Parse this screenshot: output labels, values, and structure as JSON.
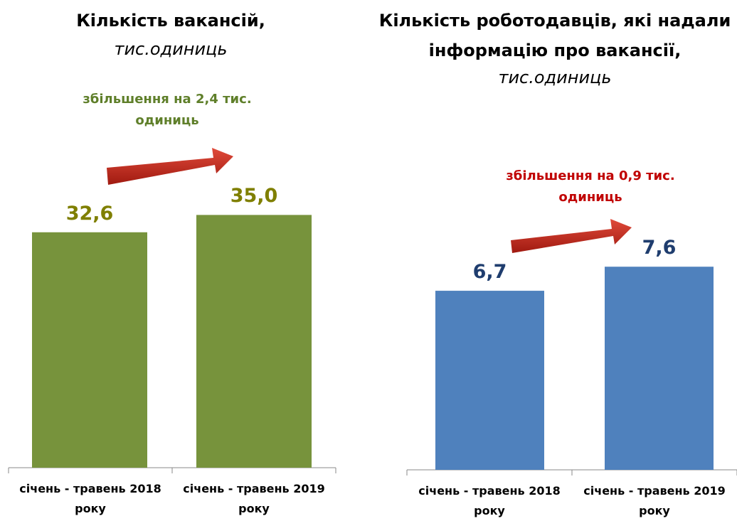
{
  "chart_data": [
    {
      "type": "bar",
      "title": "Кількість вакансій,",
      "subtitle": "тис.одиниць",
      "annotation": "збільшення на 2,4 тис. одиниць",
      "categories": [
        "січень - травень 2018 року",
        "січень - травень 2019 року"
      ],
      "values": [
        32.6,
        35.0
      ],
      "value_labels": [
        "32,6",
        "35,0"
      ],
      "color": "#77933c",
      "label_color": "#7f7f00",
      "annotation_color": "#5f7f2a"
    },
    {
      "type": "bar",
      "title": "Кількість роботодавців, які надали інформацію про вакансії,",
      "subtitle": "тис.одиниць",
      "annotation": "збільшення на 0,9 тис. одиниць",
      "categories": [
        "січень - травень 2018 року",
        "січень - травень 2019 року"
      ],
      "values": [
        6.7,
        7.6
      ],
      "value_labels": [
        "6,7",
        "7,6"
      ],
      "color": "#4f81bd",
      "label_color": "#1f3d6e",
      "annotation_color": "#c00000"
    }
  ]
}
